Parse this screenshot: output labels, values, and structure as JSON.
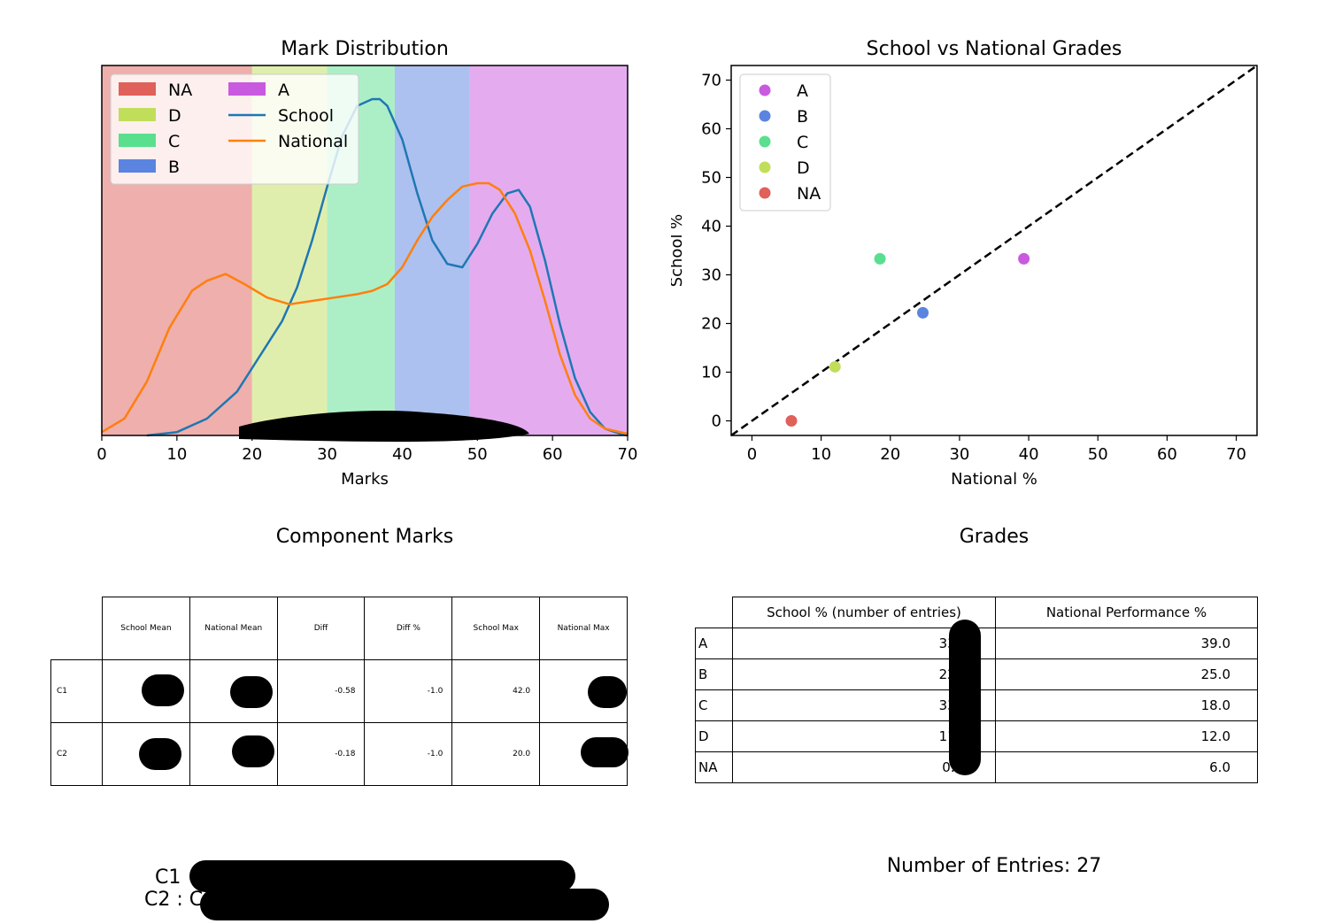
{
  "chart_data": [
    {
      "type": "line",
      "title": "Mark Distribution",
      "xlabel": "Marks",
      "ylabel": "",
      "xlim": [
        0,
        70
      ],
      "xticks": [
        "0",
        "10",
        "20",
        "30",
        "40",
        "50",
        "60",
        "70"
      ],
      "grade_bands": [
        {
          "name": "NA",
          "from": 0,
          "to": 20,
          "color": "#e0605a"
        },
        {
          "name": "D",
          "from": 20,
          "to": 30,
          "color": "#c1de5b"
        },
        {
          "name": "C",
          "from": 30,
          "to": 39,
          "color": "#5adf8e"
        },
        {
          "name": "B",
          "from": 39,
          "to": 49,
          "color": "#5a84e0"
        },
        {
          "name": "A",
          "from": 49,
          "to": 70,
          "color": "#c95ae0"
        }
      ],
      "series": [
        {
          "name": "School",
          "color": "#1f77b4",
          "x": [
            6,
            10,
            14,
            18,
            20,
            22,
            24,
            26,
            28,
            30,
            32,
            34,
            36,
            37,
            38,
            40,
            42,
            44,
            46,
            48,
            50,
            52,
            54,
            55.5,
            57,
            59,
            61,
            63,
            65,
            67,
            69,
            70
          ],
          "y": [
            0,
            0.01,
            0.05,
            0.13,
            0.2,
            0.27,
            0.34,
            0.44,
            0.58,
            0.74,
            0.89,
            0.98,
            1.0,
            1.0,
            0.98,
            0.88,
            0.72,
            0.58,
            0.51,
            0.5,
            0.57,
            0.66,
            0.72,
            0.73,
            0.68,
            0.52,
            0.33,
            0.17,
            0.07,
            0.02,
            0.005,
            0
          ]
        },
        {
          "name": "National",
          "color": "#ff7f0e",
          "x": [
            0,
            3,
            6,
            9,
            12,
            14,
            16.5,
            19,
            22,
            25,
            28,
            31,
            34,
            36,
            38,
            40,
            42,
            44,
            46,
            48,
            50,
            51.5,
            53,
            55,
            57,
            59,
            61,
            63,
            65,
            67,
            70
          ],
          "y": [
            0.01,
            0.05,
            0.16,
            0.32,
            0.43,
            0.46,
            0.48,
            0.45,
            0.41,
            0.39,
            0.4,
            0.41,
            0.42,
            0.43,
            0.45,
            0.5,
            0.58,
            0.65,
            0.7,
            0.74,
            0.75,
            0.75,
            0.73,
            0.66,
            0.55,
            0.4,
            0.24,
            0.12,
            0.05,
            0.02,
            0.005
          ]
        }
      ],
      "legend": {
        "placement": "top-left",
        "entries": [
          "NA",
          "D",
          "C",
          "B",
          "A",
          "School",
          "National"
        ]
      }
    },
    {
      "type": "scatter",
      "title": "School vs National Grades",
      "xlabel": "National %",
      "ylabel": "School %",
      "xlim": [
        -3,
        73
      ],
      "ylim": [
        -3,
        73
      ],
      "xticks": [
        "0",
        "10",
        "20",
        "30",
        "40",
        "50",
        "60",
        "70"
      ],
      "yticks": [
        "0",
        "10",
        "20",
        "30",
        "40",
        "50",
        "60",
        "70"
      ],
      "points": [
        {
          "name": "A",
          "x": 39.3,
          "y": 33.3,
          "color": "#c95ae0"
        },
        {
          "name": "B",
          "x": 24.7,
          "y": 22.2,
          "color": "#5a84e0"
        },
        {
          "name": "C",
          "x": 18.5,
          "y": 33.3,
          "color": "#5adf8e"
        },
        {
          "name": "D",
          "x": 12.0,
          "y": 11.1,
          "color": "#c1de5b"
        },
        {
          "name": "NA",
          "x": 5.7,
          "y": 0.0,
          "color": "#e0605a"
        }
      ],
      "reference_line": "y = x (dashed)",
      "legend": {
        "placement": "top-left",
        "entries": [
          "A",
          "B",
          "C",
          "D",
          "NA"
        ]
      }
    },
    {
      "type": "table",
      "title": "Component Marks",
      "columns": [
        "School Mean",
        "National Mean",
        "Diff",
        "Diff %",
        "School Max",
        "National Max"
      ],
      "rows": [
        {
          "label": "C1",
          "cells": [
            "",
            "",
            "-0.58",
            "-1.0",
            "42.0",
            ""
          ]
        },
        {
          "label": "C2",
          "cells": [
            "",
            "",
            "-0.18",
            "-1.0",
            "20.0",
            ""
          ]
        }
      ]
    },
    {
      "type": "table",
      "title": "Grades",
      "columns": [
        "School % (number of entries)",
        "National Performance %"
      ],
      "rows": [
        {
          "label": "A",
          "cells": [
            "33.0",
            "39.0"
          ]
        },
        {
          "label": "B",
          "cells": [
            "22.0",
            "25.0"
          ]
        },
        {
          "label": "C",
          "cells": [
            "33.0",
            "18.0"
          ]
        },
        {
          "label": "D",
          "cells": [
            "11.0",
            "12.0"
          ]
        },
        {
          "label": "NA",
          "cells": [
            "0.0(",
            "6.0"
          ]
        }
      ]
    }
  ],
  "footer": {
    "entries_text": "Number of Entries: 27",
    "c1_text": "C1",
    "c2_text": "C2 : C"
  }
}
